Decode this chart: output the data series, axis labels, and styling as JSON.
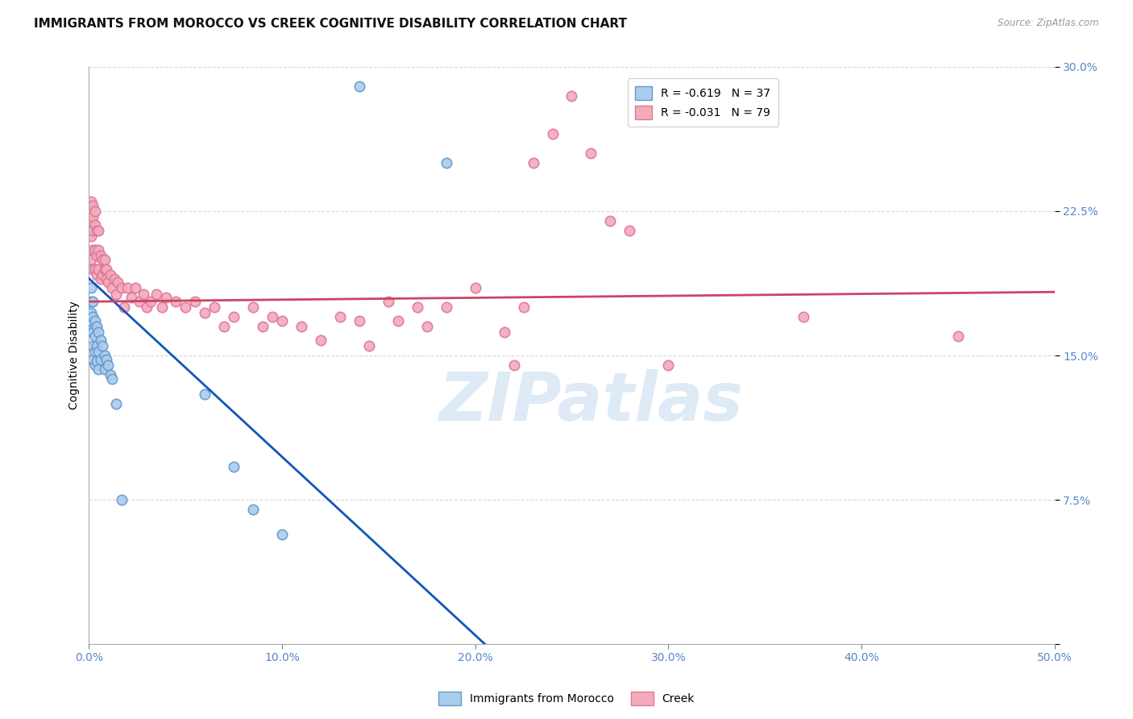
{
  "title": "IMMIGRANTS FROM MOROCCO VS CREEK COGNITIVE DISABILITY CORRELATION CHART",
  "source": "Source: ZipAtlas.com",
  "ylabel": "Cognitive Disability",
  "xlim": [
    0.0,
    0.5
  ],
  "ylim": [
    0.0,
    0.3
  ],
  "xticks": [
    0.0,
    0.1,
    0.2,
    0.3,
    0.4,
    0.5
  ],
  "xticklabels": [
    "0.0%",
    "10.0%",
    "20.0%",
    "30.0%",
    "40.0%",
    "50.0%"
  ],
  "yticks": [
    0.0,
    0.075,
    0.15,
    0.225,
    0.3
  ],
  "yticklabels": [
    "",
    "7.5%",
    "15.0%",
    "22.5%",
    "30.0%"
  ],
  "background_color": "#ffffff",
  "grid_color": "#d0d0d0",
  "watermark_text": "ZIPatlas",
  "legend_items": [
    {
      "label": "R = -0.619   N = 37",
      "color": "#aaccee"
    },
    {
      "label": "R = -0.031   N = 79",
      "color": "#f4aabb"
    }
  ],
  "bottom_legend_items": [
    {
      "label": "Immigrants from Morocco",
      "color": "#aaccee"
    },
    {
      "label": "Creek",
      "color": "#f4aabb"
    }
  ],
  "blue_color": "#aaccee",
  "pink_color": "#f4aabb",
  "blue_edge": "#6699cc",
  "pink_edge": "#dd7799",
  "blue_line_color": "#1155bb",
  "pink_line_color": "#cc4466",
  "blue_points_x": [
    0.001,
    0.001,
    0.001,
    0.001,
    0.001,
    0.002,
    0.002,
    0.002,
    0.002,
    0.002,
    0.003,
    0.003,
    0.003,
    0.003,
    0.004,
    0.004,
    0.004,
    0.005,
    0.005,
    0.005,
    0.006,
    0.006,
    0.007,
    0.008,
    0.008,
    0.009,
    0.01,
    0.011,
    0.012,
    0.014,
    0.017,
    0.06,
    0.075,
    0.085,
    0.1,
    0.14,
    0.185
  ],
  "blue_points_y": [
    0.185,
    0.178,
    0.172,
    0.168,
    0.163,
    0.178,
    0.17,
    0.162,
    0.155,
    0.148,
    0.168,
    0.16,
    0.152,
    0.145,
    0.165,
    0.155,
    0.147,
    0.162,
    0.152,
    0.143,
    0.158,
    0.148,
    0.155,
    0.15,
    0.143,
    0.148,
    0.145,
    0.14,
    0.138,
    0.125,
    0.075,
    0.13,
    0.092,
    0.07,
    0.057,
    0.29,
    0.25
  ],
  "pink_points_x": [
    0.001,
    0.001,
    0.001,
    0.001,
    0.002,
    0.002,
    0.002,
    0.002,
    0.002,
    0.003,
    0.003,
    0.003,
    0.003,
    0.004,
    0.004,
    0.004,
    0.005,
    0.005,
    0.005,
    0.006,
    0.006,
    0.007,
    0.007,
    0.008,
    0.008,
    0.009,
    0.009,
    0.01,
    0.011,
    0.012,
    0.013,
    0.014,
    0.015,
    0.017,
    0.018,
    0.02,
    0.022,
    0.024,
    0.026,
    0.028,
    0.03,
    0.032,
    0.035,
    0.038,
    0.04,
    0.045,
    0.05,
    0.055,
    0.06,
    0.065,
    0.07,
    0.075,
    0.085,
    0.09,
    0.095,
    0.1,
    0.11,
    0.12,
    0.13,
    0.14,
    0.145,
    0.155,
    0.16,
    0.17,
    0.175,
    0.185,
    0.2,
    0.215,
    0.22,
    0.225,
    0.23,
    0.24,
    0.25,
    0.26,
    0.27,
    0.28,
    0.3,
    0.37,
    0.45
  ],
  "pink_points_y": [
    0.2,
    0.212,
    0.22,
    0.23,
    0.195,
    0.205,
    0.215,
    0.222,
    0.228,
    0.195,
    0.205,
    0.218,
    0.225,
    0.192,
    0.202,
    0.215,
    0.195,
    0.205,
    0.215,
    0.19,
    0.202,
    0.192,
    0.2,
    0.195,
    0.2,
    0.19,
    0.195,
    0.188,
    0.192,
    0.185,
    0.19,
    0.182,
    0.188,
    0.185,
    0.175,
    0.185,
    0.18,
    0.185,
    0.178,
    0.182,
    0.175,
    0.178,
    0.182,
    0.175,
    0.18,
    0.178,
    0.175,
    0.178,
    0.172,
    0.175,
    0.165,
    0.17,
    0.175,
    0.165,
    0.17,
    0.168,
    0.165,
    0.158,
    0.17,
    0.168,
    0.155,
    0.178,
    0.168,
    0.175,
    0.165,
    0.175,
    0.185,
    0.162,
    0.145,
    0.175,
    0.25,
    0.265,
    0.285,
    0.255,
    0.22,
    0.215,
    0.145,
    0.17,
    0.16
  ],
  "blue_trend_x": [
    0.0,
    0.205
  ],
  "blue_trend_y": [
    0.19,
    0.0
  ],
  "pink_trend_x": [
    0.0,
    0.5
  ],
  "pink_trend_y": [
    0.178,
    0.183
  ],
  "title_fontsize": 11,
  "axis_fontsize": 10,
  "tick_fontsize": 10,
  "marker_size": 80
}
